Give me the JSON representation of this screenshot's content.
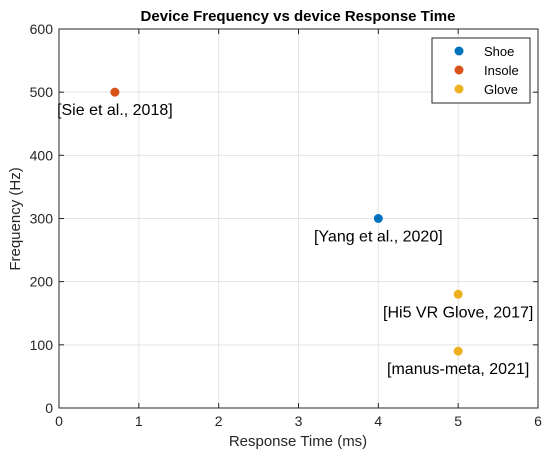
{
  "chart_data": {
    "type": "scatter",
    "title": "Device Frequency vs device Response Time",
    "xlabel": "Response Time (ms)",
    "ylabel": "Frequency (Hz)",
    "xlim": [
      0,
      6
    ],
    "ylim": [
      0,
      600
    ],
    "x_ticks": [
      0,
      1,
      2,
      3,
      4,
      5,
      6
    ],
    "y_ticks": [
      0,
      100,
      200,
      300,
      400,
      500,
      600
    ],
    "grid": true,
    "legend_position": "top-right",
    "series": [
      {
        "name": "Shoe",
        "color": "#0072BD",
        "points": [
          {
            "x": 4,
            "y": 300,
            "label": "[Yang et al., 2020]"
          }
        ]
      },
      {
        "name": "Insole",
        "color": "#D95319",
        "points": [
          {
            "x": 0.7,
            "y": 500,
            "label": "[Sie et al., 2018]"
          }
        ]
      },
      {
        "name": "Glove",
        "color": "#EDB120",
        "points": [
          {
            "x": 5,
            "y": 180,
            "label": "[Hi5 VR Glove, 2017]"
          },
          {
            "x": 5,
            "y": 90,
            "label": "[manus-meta, 2021]"
          }
        ]
      }
    ]
  }
}
